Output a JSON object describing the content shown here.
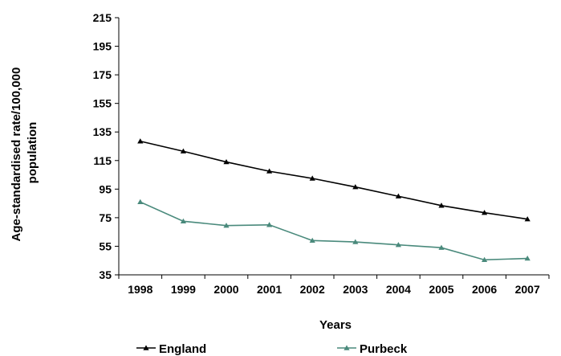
{
  "chart_data": {
    "type": "line",
    "title": "",
    "xlabel": "Years",
    "ylabel": "Age-standardised rate/100,000 population",
    "ylabel_lines": [
      "Age-standardised rate/100,000",
      "population"
    ],
    "ylim": [
      35,
      215
    ],
    "yticks": [
      35,
      55,
      75,
      95,
      115,
      135,
      155,
      175,
      195,
      215
    ],
    "x": [
      "1998",
      "1999",
      "2000",
      "2001",
      "2002",
      "2003",
      "2004",
      "2005",
      "2006",
      "2007"
    ],
    "grid": false,
    "legend_position": "bottom",
    "series": [
      {
        "name": "England",
        "color": "#000000",
        "marker": "triangle",
        "values": [
          128.5,
          121.5,
          114,
          107.5,
          102.5,
          96.5,
          90,
          83.5,
          78.5,
          74
        ]
      },
      {
        "name": "Purbeck",
        "color": "#4a8a7c",
        "marker": "triangle",
        "values": [
          86,
          72.5,
          69.5,
          70,
          59,
          58,
          56,
          54,
          45.5,
          46.5
        ]
      }
    ]
  }
}
